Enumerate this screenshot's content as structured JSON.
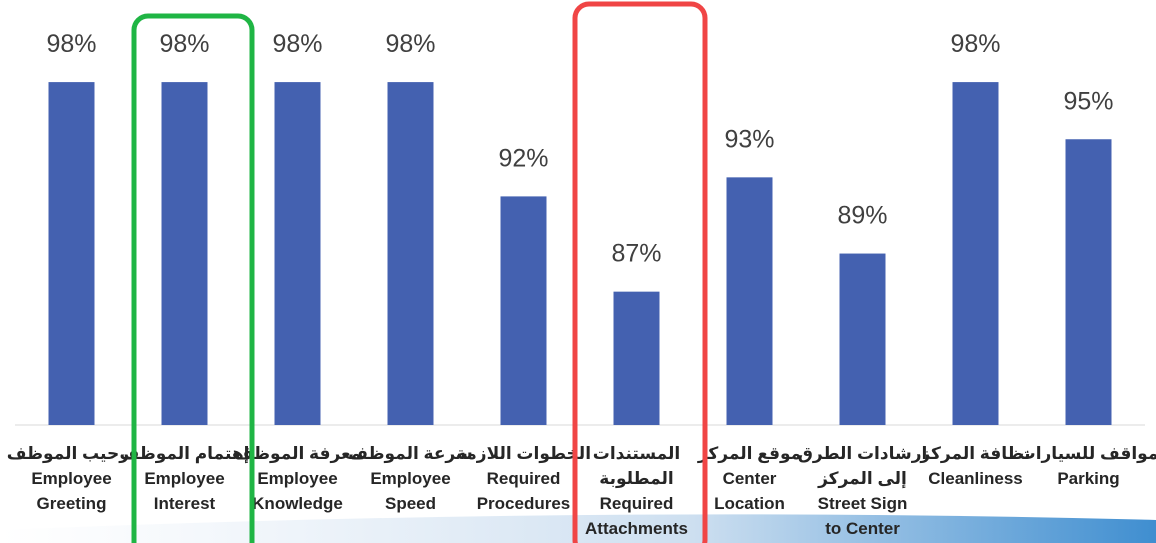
{
  "chart_data": {
    "type": "bar",
    "categories": [
      [
        "ترحيب الموظف",
        "Employee",
        "Greeting"
      ],
      [
        "إهتمام الموظف",
        "Employee",
        "Interest"
      ],
      [
        "معرفة الموظف",
        "Employee",
        "Knowledge"
      ],
      [
        "سرعة الموظف",
        "Employee",
        "Speed"
      ],
      [
        "الخطوات اللازمة",
        "Required",
        "Procedures"
      ],
      [
        "المستندات",
        "المطلوبة",
        "Required",
        "Attachments"
      ],
      [
        "موقع المركز",
        "Center",
        "Location"
      ],
      [
        "ارشادات الطرق",
        "إلى المركز",
        "Street Sign",
        "to Center"
      ],
      [
        "نظافة المركز",
        "Cleanliness"
      ],
      [
        "مواقف للسيارات",
        "Parking"
      ]
    ],
    "values": [
      98,
      98,
      98,
      98,
      92,
      87,
      93,
      89,
      98,
      95
    ],
    "value_labels": [
      "98%",
      "98%",
      "98%",
      "98%",
      "92%",
      "87%",
      "93%",
      "89%",
      "98%",
      "95%"
    ],
    "color": "#4461b0",
    "ylim": [
      80,
      100
    ]
  }
}
